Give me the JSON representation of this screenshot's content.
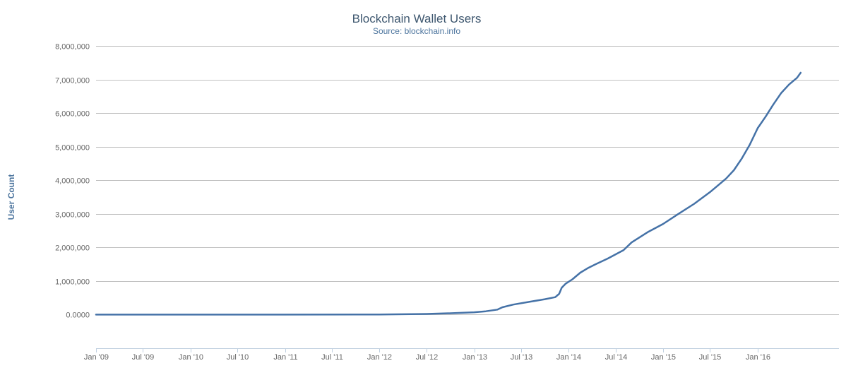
{
  "chart_data": {
    "type": "line",
    "title": "Blockchain Wallet Users",
    "subtitle": "Source: blockchain.info",
    "xlabel": "",
    "ylabel": "User Count",
    "grid": true,
    "legend": "none",
    "x_range": [
      "2009-01-01",
      "2016-11-10"
    ],
    "ylim": [
      -1000000,
      8000000
    ],
    "y_ticks": [
      {
        "value": 0,
        "label": "0.0000"
      },
      {
        "value": 1000000,
        "label": "1,000,000"
      },
      {
        "value": 2000000,
        "label": "2,000,000"
      },
      {
        "value": 3000000,
        "label": "3,000,000"
      },
      {
        "value": 4000000,
        "label": "4,000,000"
      },
      {
        "value": 5000000,
        "label": "5,000,000"
      },
      {
        "value": 6000000,
        "label": "6,000,000"
      },
      {
        "value": 7000000,
        "label": "7,000,000"
      },
      {
        "value": 8000000,
        "label": "8,000,000"
      }
    ],
    "x_ticks": [
      {
        "date": "2009-01-01",
        "label": "Jan '09"
      },
      {
        "date": "2009-07-01",
        "label": "Jul '09"
      },
      {
        "date": "2010-01-01",
        "label": "Jan '10"
      },
      {
        "date": "2010-07-01",
        "label": "Jul '10"
      },
      {
        "date": "2011-01-01",
        "label": "Jan '11"
      },
      {
        "date": "2011-07-01",
        "label": "Jul '11"
      },
      {
        "date": "2012-01-01",
        "label": "Jan '12"
      },
      {
        "date": "2012-07-01",
        "label": "Jul '12"
      },
      {
        "date": "2013-01-01",
        "label": "Jan '13"
      },
      {
        "date": "2013-07-01",
        "label": "Jul '13"
      },
      {
        "date": "2014-01-01",
        "label": "Jan '14"
      },
      {
        "date": "2014-07-01",
        "label": "Jul '14"
      },
      {
        "date": "2015-01-01",
        "label": "Jan '15"
      },
      {
        "date": "2015-07-01",
        "label": "Jul '15"
      },
      {
        "date": "2016-01-01",
        "label": "Jan '16"
      }
    ],
    "series": [
      {
        "color": "#4572a7",
        "points": [
          {
            "x": "2009-01-01",
            "y": 0
          },
          {
            "x": "2011-01-01",
            "y": 0
          },
          {
            "x": "2012-01-01",
            "y": 5000
          },
          {
            "x": "2012-07-01",
            "y": 20000
          },
          {
            "x": "2012-10-01",
            "y": 40000
          },
          {
            "x": "2013-01-01",
            "y": 70000
          },
          {
            "x": "2013-02-15",
            "y": 100000
          },
          {
            "x": "2013-04-01",
            "y": 150000
          },
          {
            "x": "2013-04-20",
            "y": 220000
          },
          {
            "x": "2013-06-01",
            "y": 300000
          },
          {
            "x": "2013-08-01",
            "y": 380000
          },
          {
            "x": "2013-10-01",
            "y": 460000
          },
          {
            "x": "2013-11-10",
            "y": 520000
          },
          {
            "x": "2013-11-25",
            "y": 620000
          },
          {
            "x": "2013-12-05",
            "y": 800000
          },
          {
            "x": "2013-12-20",
            "y": 920000
          },
          {
            "x": "2014-01-15",
            "y": 1050000
          },
          {
            "x": "2014-02-15",
            "y": 1250000
          },
          {
            "x": "2014-03-15",
            "y": 1380000
          },
          {
            "x": "2014-04-15",
            "y": 1500000
          },
          {
            "x": "2014-06-01",
            "y": 1670000
          },
          {
            "x": "2014-08-01",
            "y": 1920000
          },
          {
            "x": "2014-09-01",
            "y": 2150000
          },
          {
            "x": "2014-11-01",
            "y": 2450000
          },
          {
            "x": "2015-01-01",
            "y": 2700000
          },
          {
            "x": "2015-03-01",
            "y": 3000000
          },
          {
            "x": "2015-05-01",
            "y": 3300000
          },
          {
            "x": "2015-07-01",
            "y": 3650000
          },
          {
            "x": "2015-08-01",
            "y": 3850000
          },
          {
            "x": "2015-09-01",
            "y": 4050000
          },
          {
            "x": "2015-10-01",
            "y": 4300000
          },
          {
            "x": "2015-11-01",
            "y": 4650000
          },
          {
            "x": "2015-12-01",
            "y": 5050000
          },
          {
            "x": "2016-01-01",
            "y": 5550000
          },
          {
            "x": "2016-02-01",
            "y": 5900000
          },
          {
            "x": "2016-03-01",
            "y": 6250000
          },
          {
            "x": "2016-04-01",
            "y": 6600000
          },
          {
            "x": "2016-05-01",
            "y": 6850000
          },
          {
            "x": "2016-06-01",
            "y": 7050000
          },
          {
            "x": "2016-06-15",
            "y": 7200000
          }
        ]
      }
    ]
  }
}
